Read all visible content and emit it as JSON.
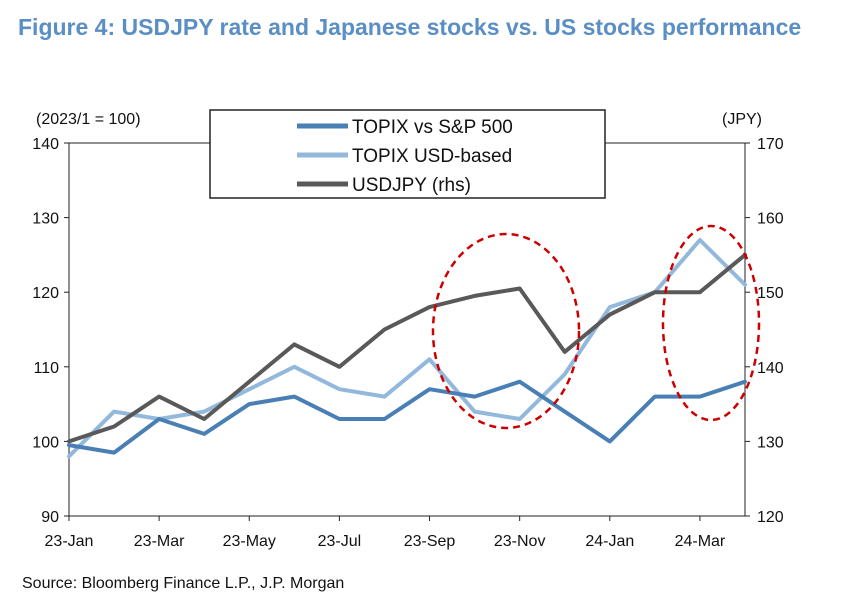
{
  "title": "Figure 4: USDJPY rate and Japanese stocks vs. US stocks performance",
  "source": "Source: Bloomberg Finance L.P., J.P. Morgan",
  "chart_data": {
    "type": "line",
    "left_axis_unit": "(2023/1 = 100)",
    "right_axis_unit": "(JPY)",
    "ylim": [
      90,
      140
    ],
    "y2lim": [
      120,
      170
    ],
    "y_ticks": [
      "90",
      "100",
      "110",
      "120",
      "130",
      "140"
    ],
    "y2_ticks": [
      "120",
      "130",
      "140",
      "150",
      "160",
      "170"
    ],
    "x_ticks": [
      "23-Jan",
      "23-Mar",
      "23-May",
      "23-Jul",
      "23-Sep",
      "23-Nov",
      "24-Jan",
      "24-Mar"
    ],
    "grid": false,
    "legend_position": "top-center",
    "colors": {
      "topix_vs_sp500": "#4a7fb5",
      "topix_usd": "#92b8db",
      "usdjpy": "#595959",
      "circle": "#cc0000"
    },
    "x": [
      "2023-01",
      "2023-02",
      "2023-03",
      "2023-04",
      "2023-05",
      "2023-06",
      "2023-07",
      "2023-08",
      "2023-09",
      "2023-10",
      "2023-11",
      "2023-12",
      "2024-01",
      "2024-02",
      "2024-03",
      "2024-04"
    ],
    "series": [
      {
        "name": "TOPIX vs S&P 500",
        "axis": "left",
        "values": [
          99.5,
          98.5,
          103,
          101,
          105,
          106,
          103,
          103,
          107,
          106,
          108,
          104,
          100,
          106,
          106,
          108
        ]
      },
      {
        "name": "TOPIX USD-based",
        "axis": "left",
        "values": [
          98,
          104,
          103,
          104,
          107,
          110,
          107,
          106,
          111,
          104,
          103,
          109,
          118,
          120,
          127,
          121
        ]
      },
      {
        "name": "USDJPY (rhs)",
        "axis": "right",
        "values": [
          130,
          132,
          136,
          133,
          138,
          143,
          140,
          145,
          148,
          149.5,
          150.5,
          142,
          147,
          150,
          150,
          155
        ]
      }
    ],
    "annotations": [
      "dashed red ellipse around Sep–Dec 2023",
      "dashed red ellipse around Mar–Apr 2024"
    ]
  }
}
